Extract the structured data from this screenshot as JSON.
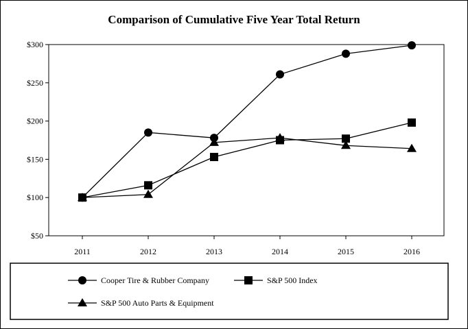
{
  "chart_data": {
    "type": "line",
    "title": "Comparison of Cumulative Five Year Total Return",
    "categories": [
      "2011",
      "2012",
      "2013",
      "2014",
      "2015",
      "2016"
    ],
    "y_ticks": [
      "$50",
      "$100",
      "$150",
      "$200",
      "$250",
      "$300"
    ],
    "ylim": [
      50,
      300
    ],
    "grid": false,
    "legend_position": "bottom",
    "series": [
      {
        "name": "Cooper Tire & Rubber Company",
        "marker": "circle",
        "values": [
          100,
          185,
          178,
          261,
          288,
          299
        ]
      },
      {
        "name": "S&P 500 Index",
        "marker": "square",
        "values": [
          100,
          116,
          153,
          175,
          177,
          198
        ]
      },
      {
        "name": "S&P 500 Auto Parts & Equipment",
        "marker": "triangle",
        "values": [
          100,
          104,
          172,
          178,
          168,
          164
        ]
      }
    ]
  }
}
